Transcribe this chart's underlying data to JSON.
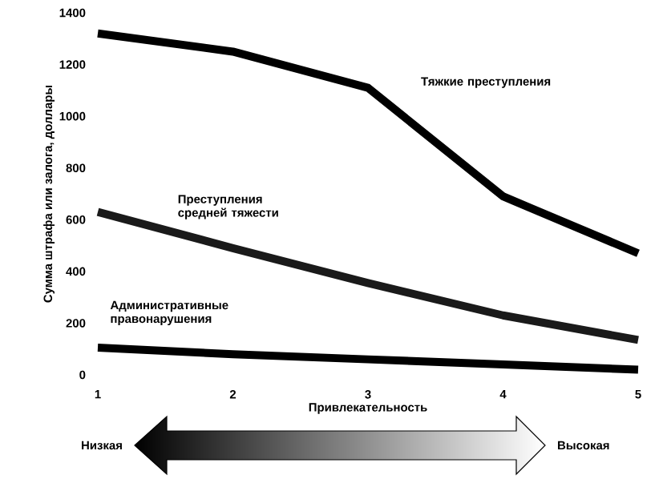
{
  "chart_data": {
    "type": "line",
    "xlabel": "Привлекательность",
    "ylabel": "Сумма штрафа или залога, доллары",
    "x": [
      1,
      2,
      3,
      4,
      5
    ],
    "xlim": [
      1,
      5
    ],
    "xticks": [
      1,
      2,
      3,
      4,
      5
    ],
    "ylim": [
      0,
      1400
    ],
    "yticks": [
      0,
      200,
      400,
      600,
      800,
      1000,
      1200,
      1400
    ],
    "series": [
      {
        "name": "Тяжкие преступления",
        "color": "#000000",
        "values": [
          1320,
          1250,
          1110,
          690,
          470
        ]
      },
      {
        "name": "Преступления средней тяжести",
        "color": "#1a1a1a",
        "values": [
          630,
          490,
          355,
          230,
          135
        ]
      },
      {
        "name": "Административные правонарушения",
        "color": "#000000",
        "values": [
          105,
          80,
          60,
          40,
          20
        ]
      }
    ],
    "annotations": [
      "Низкая",
      "Высокая"
    ],
    "marker": "none",
    "line_style": "solid"
  }
}
